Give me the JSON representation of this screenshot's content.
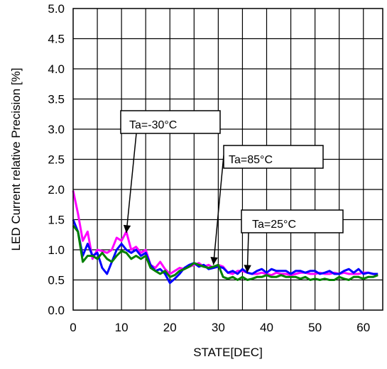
{
  "chart_data": {
    "type": "line",
    "title": "",
    "xlabel": "STATE[DEC]",
    "ylabel": "LED Current relative Precision [%]",
    "xlim": [
      0,
      64
    ],
    "ylim": [
      0.0,
      5.0
    ],
    "x_ticks": [
      0,
      10,
      20,
      30,
      40,
      50,
      60
    ],
    "x_tick_labels": [
      "0",
      "10",
      "20",
      "30",
      "40",
      "50",
      "60"
    ],
    "y_ticks": [
      0.0,
      0.5,
      1.0,
      1.5,
      2.0,
      2.5,
      3.0,
      3.5,
      4.0,
      4.5,
      5.0
    ],
    "y_tick_labels": [
      "0.0",
      "0.5",
      "1.0",
      "1.5",
      "2.0",
      "2.5",
      "3.0",
      "3.5",
      "4.0",
      "4.5",
      "5.0"
    ],
    "grid": true,
    "x": [
      0,
      1,
      2,
      3,
      4,
      5,
      6,
      7,
      8,
      9,
      10,
      11,
      12,
      13,
      14,
      15,
      16,
      17,
      18,
      19,
      20,
      21,
      22,
      23,
      24,
      25,
      26,
      27,
      28,
      29,
      30,
      31,
      32,
      33,
      34,
      35,
      36,
      37,
      38,
      39,
      40,
      41,
      42,
      43,
      44,
      45,
      46,
      47,
      48,
      49,
      50,
      51,
      52,
      53,
      54,
      55,
      56,
      57,
      58,
      59,
      60,
      61,
      62,
      63
    ],
    "series": [
      {
        "name": "Ta=-30°C",
        "color": "#ff00ff",
        "values": [
          1.98,
          1.6,
          1.15,
          1.3,
          0.85,
          1.0,
          0.98,
          0.95,
          1.0,
          1.2,
          1.15,
          1.3,
          1.0,
          1.05,
          0.95,
          1.0,
          0.75,
          0.7,
          0.8,
          0.68,
          0.6,
          0.65,
          0.7,
          0.68,
          0.72,
          0.75,
          0.78,
          0.72,
          0.75,
          0.7,
          0.75,
          0.72,
          0.62,
          0.6,
          0.65,
          0.65,
          0.62,
          0.6,
          0.6,
          0.62,
          0.6,
          0.58,
          0.62,
          0.6,
          0.6,
          0.58,
          0.6,
          0.62,
          0.62,
          0.6,
          0.6,
          0.62,
          0.6,
          0.6,
          0.62,
          0.6,
          0.62,
          0.6,
          0.6,
          0.6,
          0.62,
          0.62,
          0.6,
          0.58
        ]
      },
      {
        "name": "Ta=85°C",
        "color": "#0000ff",
        "values": [
          1.5,
          1.3,
          0.9,
          1.1,
          0.9,
          0.95,
          0.7,
          0.6,
          0.8,
          1.0,
          1.1,
          1.0,
          0.95,
          1.0,
          0.9,
          0.95,
          0.75,
          0.65,
          0.68,
          0.6,
          0.45,
          0.52,
          0.6,
          0.7,
          0.75,
          0.78,
          0.72,
          0.75,
          0.68,
          0.7,
          0.72,
          0.7,
          0.62,
          0.65,
          0.6,
          0.68,
          0.62,
          0.6,
          0.65,
          0.68,
          0.62,
          0.68,
          0.65,
          0.65,
          0.65,
          0.6,
          0.65,
          0.65,
          0.62,
          0.65,
          0.65,
          0.6,
          0.62,
          0.65,
          0.6,
          0.6,
          0.65,
          0.68,
          0.62,
          0.68,
          0.6,
          0.62,
          0.6,
          0.6
        ]
      },
      {
        "name": "Ta=25°C",
        "color": "#008000",
        "values": [
          1.4,
          1.3,
          0.8,
          0.9,
          0.9,
          0.85,
          0.95,
          0.85,
          0.8,
          0.9,
          0.98,
          0.95,
          0.85,
          0.9,
          0.85,
          0.9,
          0.7,
          0.65,
          0.6,
          0.65,
          0.55,
          0.58,
          0.65,
          0.68,
          0.72,
          0.78,
          0.75,
          0.72,
          0.7,
          0.72,
          0.75,
          0.55,
          0.52,
          0.55,
          0.5,
          0.55,
          0.5,
          0.52,
          0.55,
          0.55,
          0.58,
          0.55,
          0.55,
          0.58,
          0.55,
          0.55,
          0.55,
          0.52,
          0.55,
          0.5,
          0.52,
          0.5,
          0.52,
          0.5,
          0.5,
          0.55,
          0.52,
          0.5,
          0.55,
          0.55,
          0.52,
          0.55,
          0.55,
          0.58
        ]
      }
    ],
    "annotations": [
      {
        "text": "Ta=-30°C",
        "points_to": [
          11,
          1.28
        ]
      },
      {
        "text": "Ta=85°C",
        "points_to": [
          29,
          0.75
        ]
      },
      {
        "text": "Ta=25°C",
        "points_to": [
          36,
          0.62
        ]
      }
    ]
  }
}
